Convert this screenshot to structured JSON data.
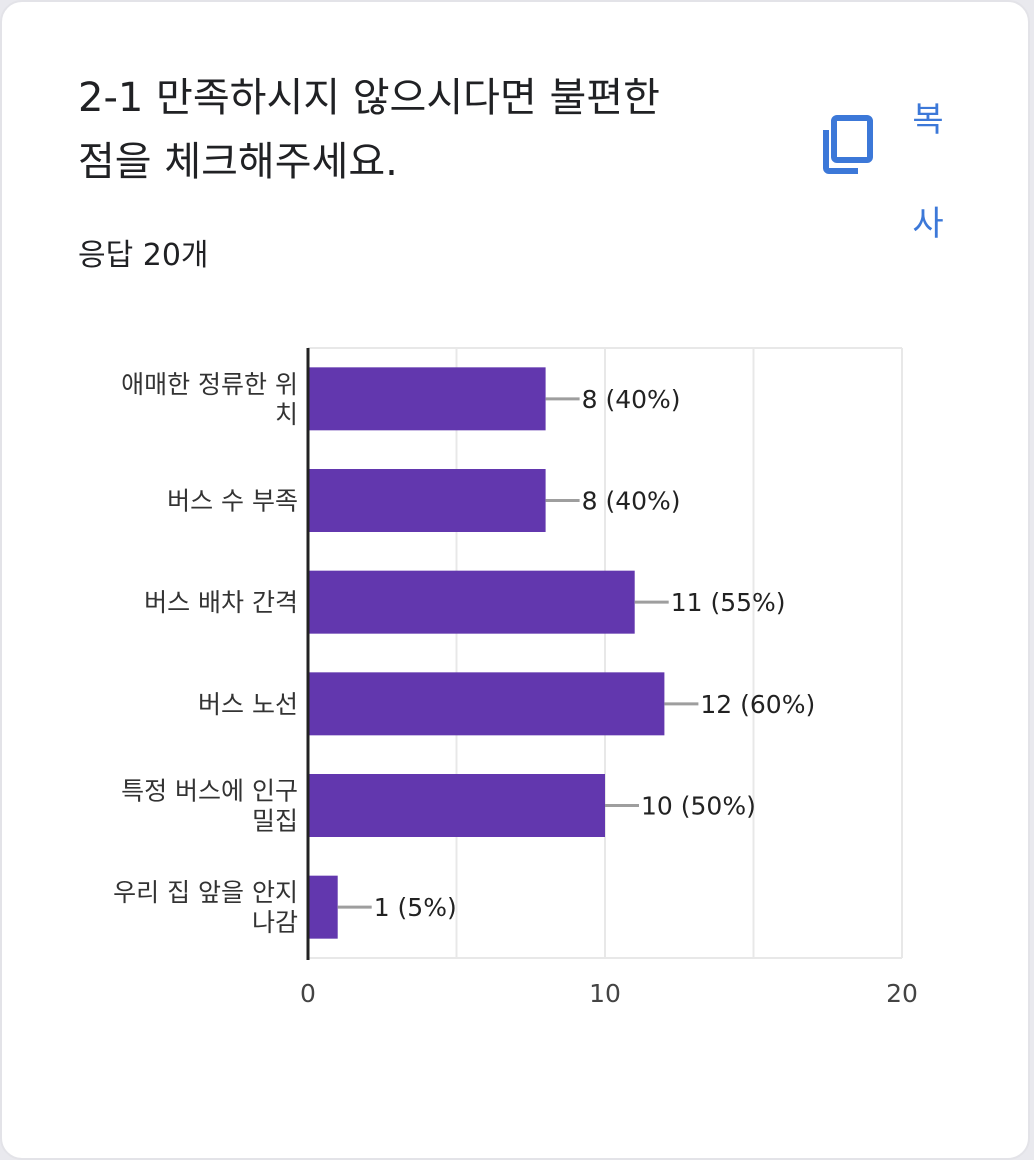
{
  "card": {
    "title_lines": [
      "2-1 만족하시지 않으시다면 불편한",
      "점을 체크해주세요."
    ],
    "response_count": "응답 20개",
    "copy_label_chars": [
      "복",
      "사"
    ],
    "copy_icon": "copy-icon"
  },
  "chart_data": {
    "type": "bar",
    "orientation": "horizontal",
    "categories": [
      [
        "애매한 정류한 위",
        "치"
      ],
      [
        "버스 수 부족"
      ],
      [
        "버스 배차 간격"
      ],
      [
        "버스 노선"
      ],
      [
        "특정 버스에 인구",
        "밀집"
      ],
      [
        "우리 집 앞을 안지",
        "나감"
      ]
    ],
    "values": [
      8,
      8,
      11,
      12,
      10,
      1
    ],
    "data_labels": [
      "8 (40%)",
      "8 (40%)",
      "11 (55%)",
      "12 (60%)",
      "10 (50%)",
      "1 (5%)"
    ],
    "xlim": [
      0,
      20
    ],
    "x_ticks": [
      "0",
      "10",
      "20"
    ],
    "grid": true,
    "colors": {
      "bar": "#6237ae",
      "grid": "#e8e8e8",
      "axis": "#222222",
      "leader": "#9e9e9e",
      "accent": "#3c78d8"
    }
  }
}
